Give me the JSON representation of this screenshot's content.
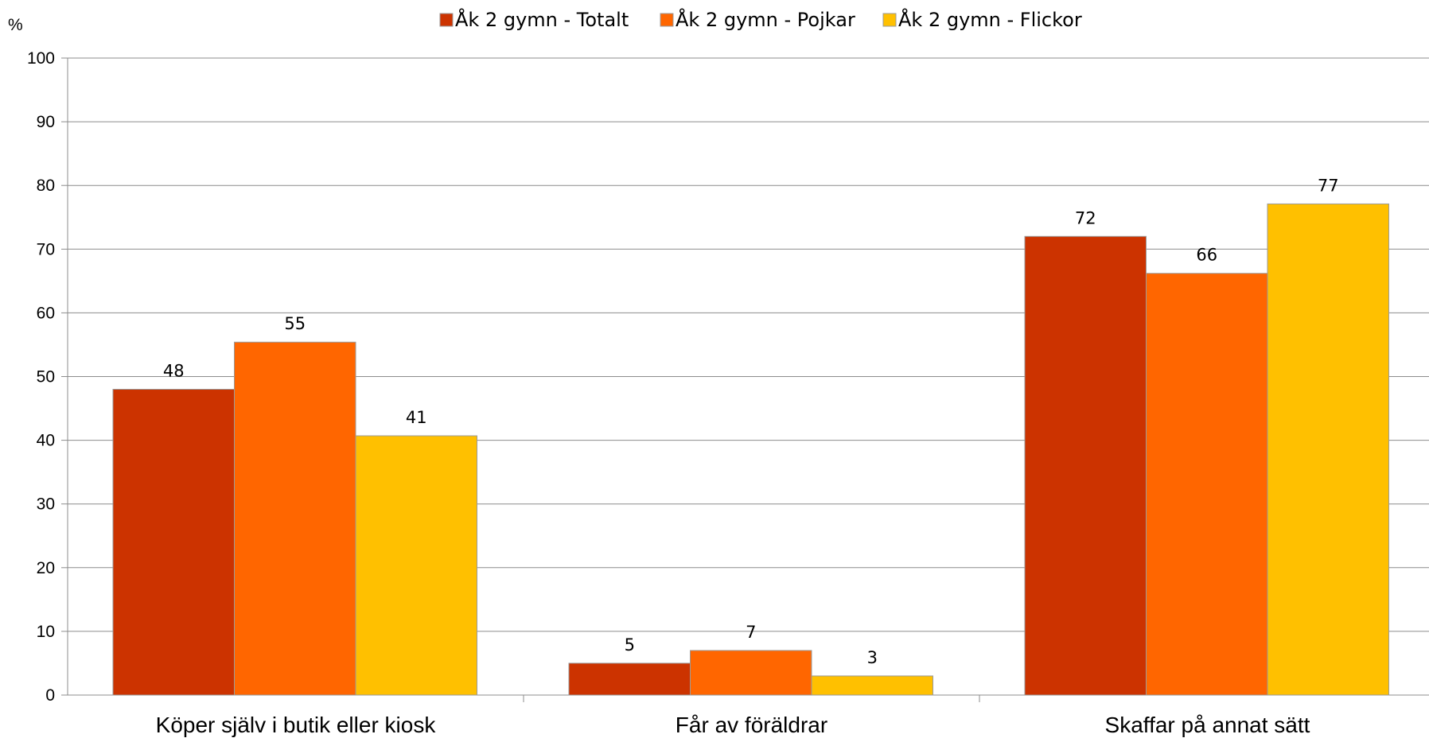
{
  "chart_data": {
    "type": "bar",
    "y_unit_label": "%",
    "categories": [
      "Köper själv i butik eller kiosk",
      "Får av föräldrar",
      "Skaffar på annat sätt"
    ],
    "series": [
      {
        "name": "Åk 2 gymn - Totalt",
        "color": "#CC3300",
        "values": [
          48,
          5,
          72
        ],
        "labels": [
          "48",
          "5",
          "72"
        ]
      },
      {
        "name": "Åk 2 gymn - Pojkar",
        "color": "#FF6600",
        "values": [
          55.4,
          7,
          66.2
        ],
        "labels": [
          "55",
          "7",
          "66"
        ]
      },
      {
        "name": "Åk 2 gymn - Flickor",
        "color": "#FFC000",
        "values": [
          40.7,
          3,
          77.1
        ],
        "labels": [
          "41",
          "3",
          "77"
        ]
      }
    ],
    "ylim": [
      0,
      100
    ],
    "yticks": [
      0,
      10,
      20,
      30,
      40,
      50,
      60,
      70,
      80,
      90,
      100
    ],
    "ytick_labels": [
      "0",
      "10",
      "20",
      "30",
      "40",
      "50",
      "60",
      "70",
      "80",
      "90",
      "100"
    ],
    "grid": true,
    "legend_position": "top"
  }
}
